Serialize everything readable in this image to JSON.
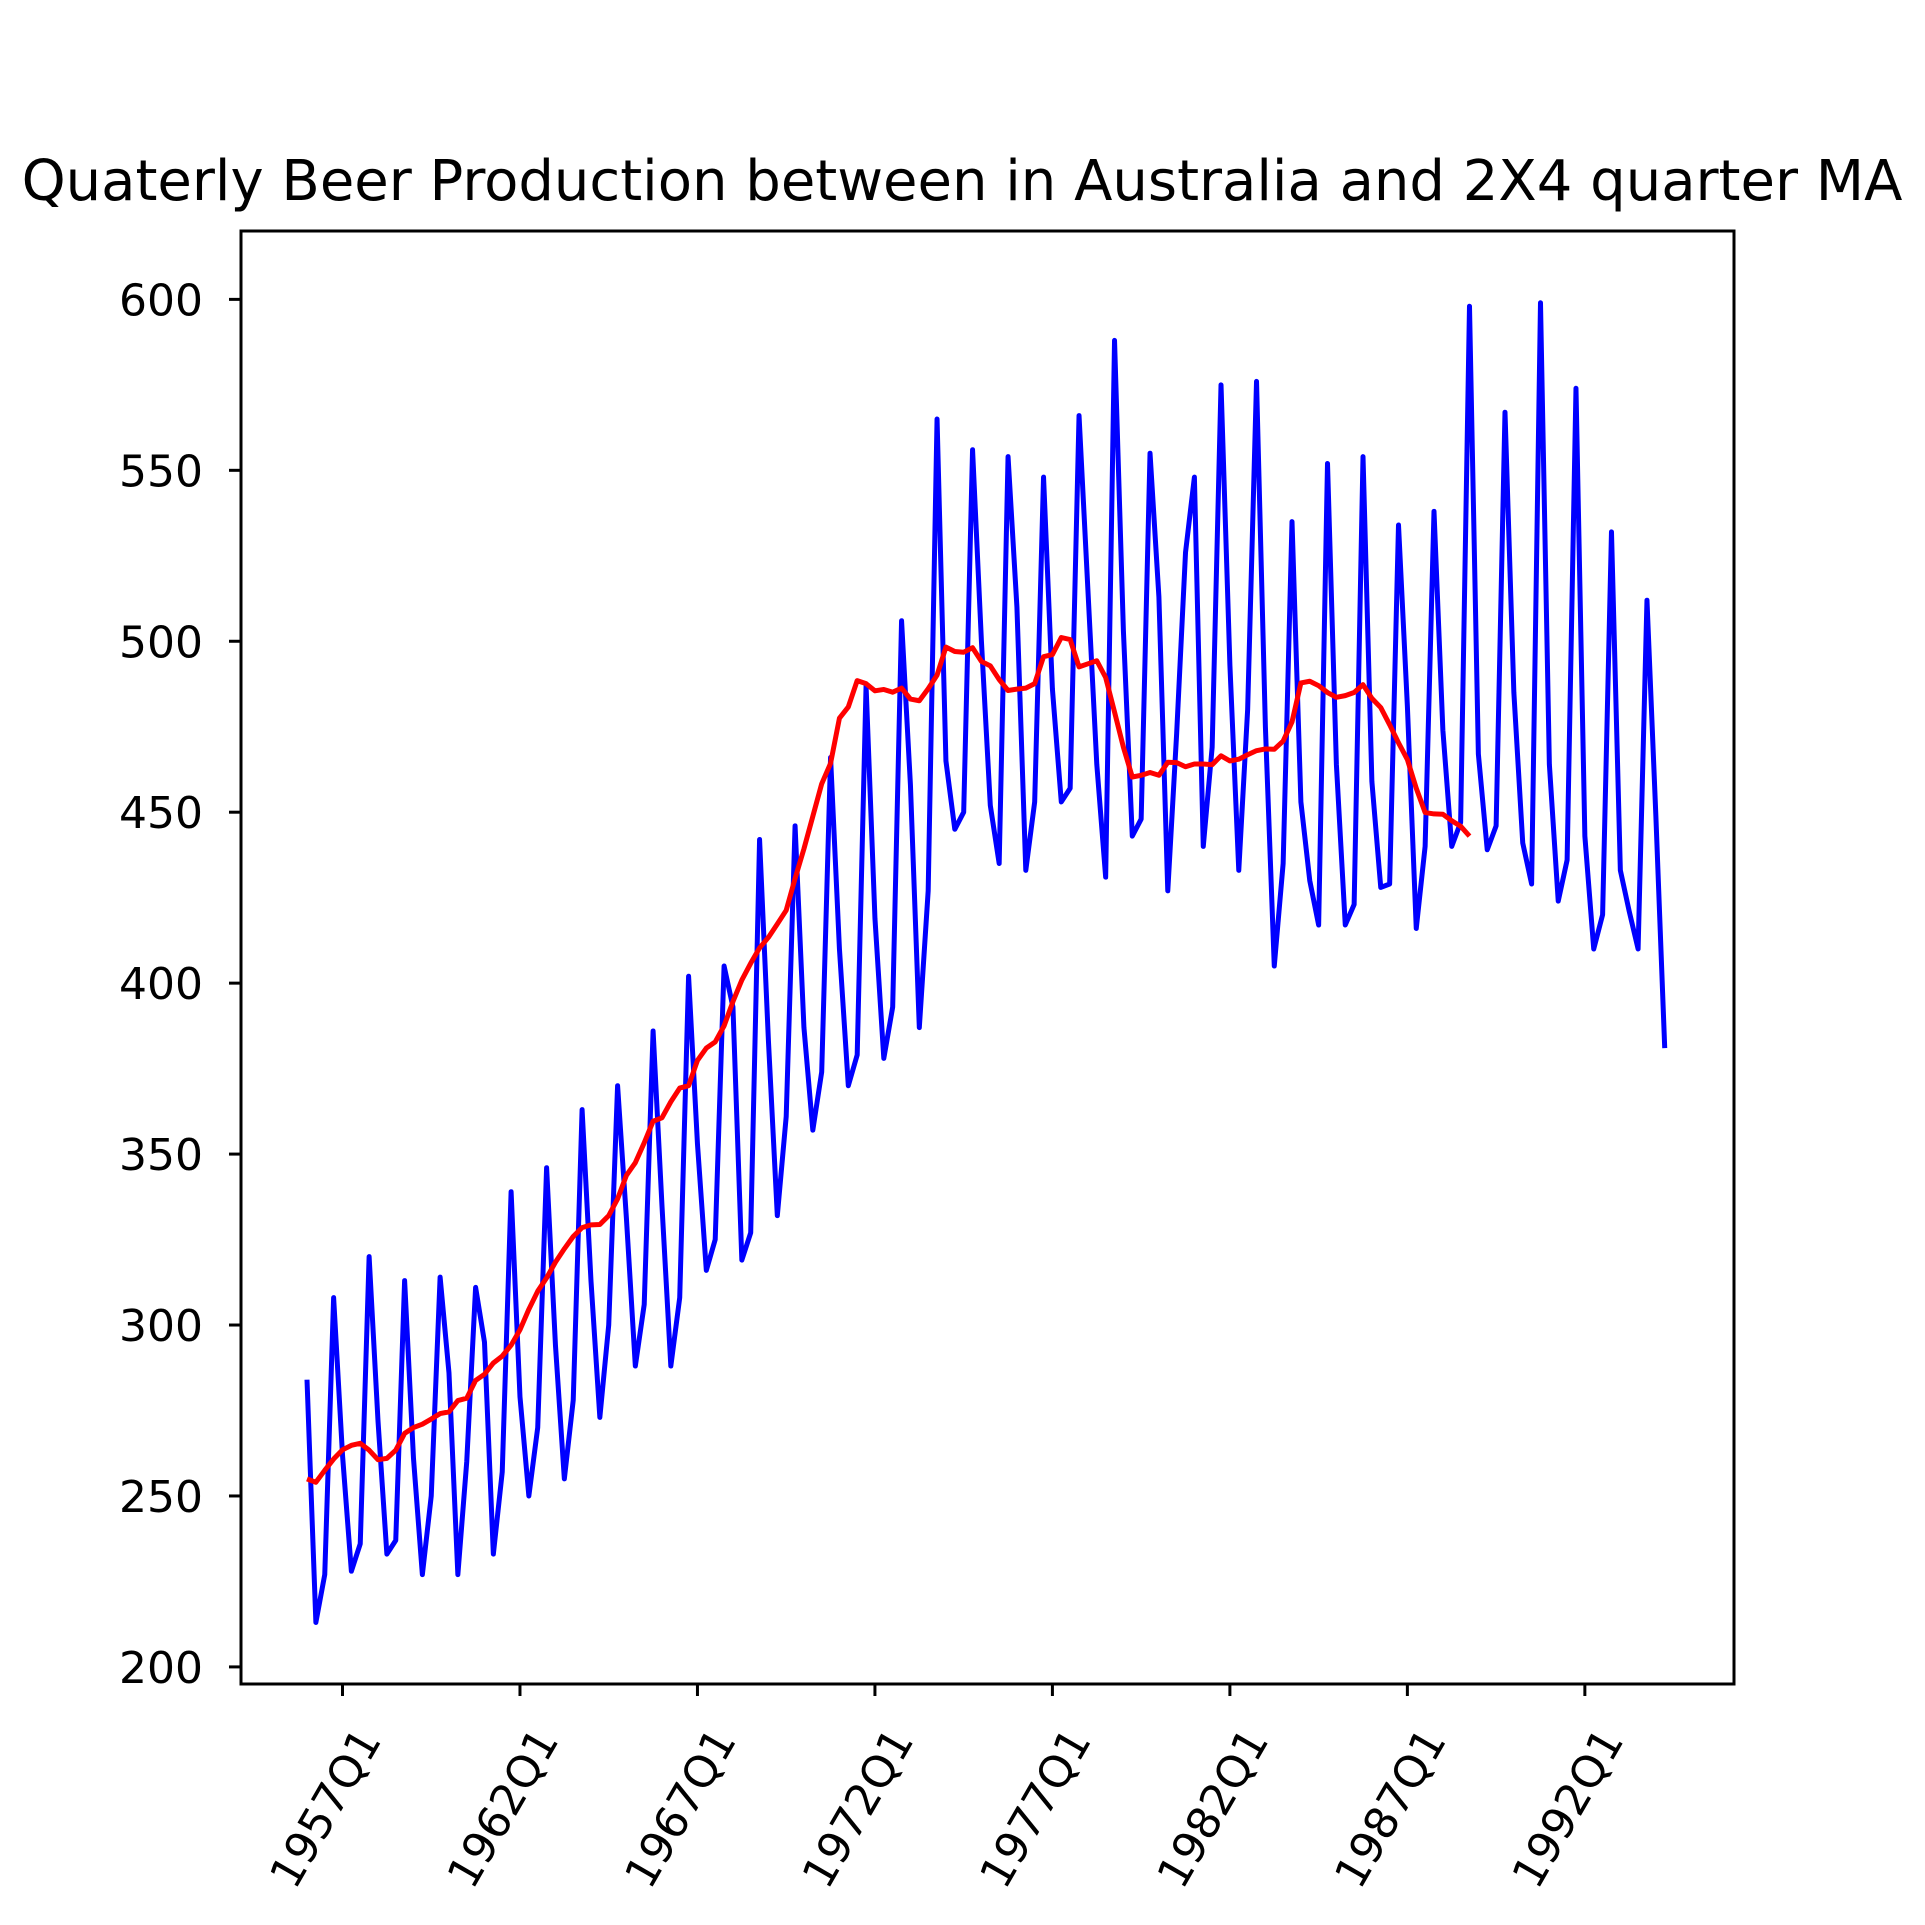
{
  "chart_data": {
    "type": "line",
    "title": "Quaterly Beer Production between in Australia and 2X4 quarter MA",
    "xlabel": "",
    "ylabel": "",
    "x_start": "1956Q1",
    "x_tick_labels": [
      "1957Q1",
      "1962Q1",
      "1967Q1",
      "1972Q1",
      "1977Q1",
      "1982Q1",
      "1987Q1",
      "1992Q1"
    ],
    "y_ticks": [
      200,
      250,
      300,
      350,
      400,
      450,
      500,
      550,
      600
    ],
    "ylim": [
      195,
      620
    ],
    "grid": false,
    "series": [
      {
        "color": "#0000ff",
        "values": [
          284,
          213,
          227,
          308,
          262,
          228,
          236,
          320,
          272,
          233,
          237,
          313,
          261,
          227,
          250,
          314,
          286,
          227,
          260,
          311,
          295,
          233,
          257,
          339,
          279,
          250,
          270,
          346,
          294,
          255,
          278,
          363,
          313,
          273,
          300,
          370,
          331,
          288,
          306,
          386,
          335,
          288,
          308,
          402,
          353,
          316,
          325,
          405,
          393,
          319,
          327,
          442,
          383,
          332,
          361,
          446,
          387,
          357,
          374,
          466,
          410,
          370,
          379,
          487,
          419,
          378,
          393,
          506,
          458,
          387,
          427,
          565,
          465,
          445,
          450,
          556,
          500,
          452,
          435,
          554,
          510,
          433,
          453,
          548,
          486,
          453,
          457,
          566,
          515,
          464,
          431,
          588,
          503,
          443,
          448,
          555,
          513,
          427,
          473,
          526,
          548,
          440,
          469,
          575,
          493,
          433,
          480,
          576,
          475,
          405,
          435,
          535,
          453,
          430,
          417,
          552,
          464,
          417,
          423,
          554,
          459,
          428,
          429,
          534,
          481,
          416,
          440,
          538,
          474,
          440,
          447,
          598,
          467,
          439,
          446,
          567,
          485,
          441,
          429,
          599,
          464,
          424,
          436,
          574,
          443,
          410,
          420,
          532,
          433,
          421,
          410,
          512,
          449,
          381
        ]
      },
      {
        "color": "#ff0000",
        "values": [
          255.0,
          254.0,
          257.5,
          260.8,
          263.5,
          264.8,
          265.4,
          263.4,
          260.6,
          261.0,
          263.4,
          268.3,
          270.0,
          271.0,
          272.5,
          274.1,
          274.6,
          277.9,
          278.6,
          283.8,
          285.6,
          288.9,
          290.9,
          294.1,
          298.6,
          304.6,
          309.9,
          313.8,
          318.4,
          322.3,
          325.9,
          328.5,
          329.3,
          329.4,
          332.0,
          336.9,
          343.8,
          347.5,
          353.3,
          359.6,
          360.6,
          365.3,
          369.3,
          370.0,
          377.4,
          381.0,
          382.8,
          387.5,
          394.6,
          400.9,
          405.8,
          410.3,
          413.4,
          417.3,
          421.3,
          430.6,
          439.3,
          448.8,
          458.3,
          464.3,
          477.5,
          480.8,
          488.5,
          487.6,
          485.5,
          485.9,
          485.1,
          486.3,
          483.1,
          482.6,
          486.1,
          490.1,
          498.3,
          497.0,
          496.8,
          498.1,
          494.1,
          492.8,
          488.8,
          485.6,
          486.0,
          486.3,
          487.6,
          495.5,
          496.1,
          501.1,
          500.5,
          492.5,
          493.4,
          494.3,
          489.4,
          479.3,
          469.0,
          460.3,
          460.8,
          461.6,
          460.8,
          464.6,
          464.5,
          463.3,
          464.1,
          464.1,
          463.9,
          466.5,
          465.0,
          465.5,
          466.8,
          468.0,
          468.5,
          468.4,
          470.8,
          476.4,
          487.8,
          488.3,
          487.0,
          485.0,
          483.6,
          484.1,
          485.0,
          487.3,
          483.3,
          480.6,
          475.6,
          470.3,
          465.4,
          457.0,
          449.9,
          449.5,
          449.4,
          447.5,
          445.9,
          443.0
        ]
      }
    ]
  }
}
